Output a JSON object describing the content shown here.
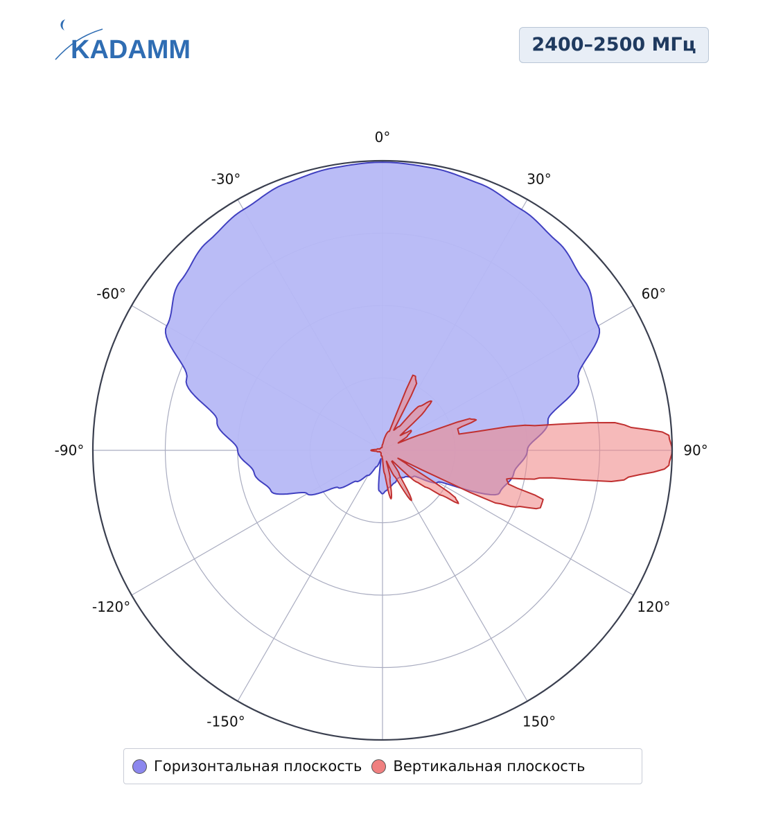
{
  "header": {
    "logo_text": "KADAMM",
    "frequency_band": "2400–2500 МГц"
  },
  "colors": {
    "horizontal_fill": "#b6b8f6",
    "horizontal_line": "#4040c0",
    "vertical_fill": "#f08888",
    "vertical_line": "#c03030",
    "logo_blue": "#2f6db3"
  },
  "chart_data": {
    "type": "polar-area",
    "angular_unit": "degrees",
    "angular_range": [
      -180,
      180
    ],
    "zero_direction": "top",
    "angular_ticks": [
      0,
      30,
      60,
      90,
      120,
      150,
      180,
      -150,
      -120,
      -90,
      -60,
      -30
    ],
    "angular_tick_labels": [
      "0°",
      "30°",
      "60°",
      "90°",
      "120°",
      "150°",
      "",
      "-150°",
      "-120°",
      "-90°",
      "-60°",
      "-30°"
    ],
    "radial_range": [
      0,
      1
    ],
    "radial_grid": [
      0.25,
      0.5,
      0.75,
      1.0
    ],
    "radial_tick_labels_shown": false,
    "grid": true,
    "legend_position": "bottom",
    "series": [
      {
        "name": "Горизонтальная плоскость",
        "theta": [
          0,
          10,
          20,
          30,
          40,
          50,
          60,
          70,
          80,
          90,
          100,
          110,
          120,
          130,
          140,
          150,
          160,
          170,
          175,
          180,
          -175,
          -170,
          -160,
          -150,
          -140,
          -130,
          -120,
          -110,
          -100,
          -90,
          -80,
          -70,
          -60,
          -50,
          -40,
          -30,
          -20,
          -10
        ],
        "r": [
          0.995,
          0.99,
          0.98,
          0.96,
          0.94,
          0.91,
          0.86,
          0.72,
          0.58,
          0.5,
          0.46,
          0.43,
          0.22,
          0.14,
          0.12,
          0.11,
          0.12,
          0.13,
          0.14,
          0.15,
          0.14,
          0.03,
          0.06,
          0.1,
          0.14,
          0.2,
          0.3,
          0.41,
          0.45,
          0.5,
          0.58,
          0.72,
          0.86,
          0.91,
          0.94,
          0.96,
          0.98,
          0.99
        ]
      },
      {
        "name": "Вертикальная плоскость",
        "theta": [
          0,
          20,
          22,
          24,
          25,
          27,
          29,
          35,
          40,
          45,
          47,
          50,
          53,
          55,
          56,
          60,
          65,
          68,
          70,
          72,
          74,
          78,
          80,
          84,
          87,
          90,
          93,
          97,
          100,
          103,
          105,
          107,
          110,
          113,
          115,
          117,
          120,
          123,
          125,
          127,
          130,
          133,
          137,
          140,
          145,
          150,
          155,
          160,
          165,
          170,
          175,
          180,
          -175,
          -170,
          -150,
          -120,
          -100,
          -90,
          -80,
          -60,
          -30,
          -10
        ],
        "r": [
          0.02,
          0.07,
          0.28,
          0.28,
          0.27,
          0.26,
          0.08,
          0.1,
          0.2,
          0.24,
          0.2,
          0.08,
          0.1,
          0.12,
          0.12,
          0.1,
          0.06,
          0.15,
          0.32,
          0.34,
          0.27,
          0.27,
          0.5,
          0.84,
          0.99,
          1.0,
          0.99,
          0.84,
          0.55,
          0.44,
          0.45,
          0.58,
          0.58,
          0.5,
          0.43,
          0.06,
          0.1,
          0.3,
          0.32,
          0.26,
          0.2,
          0.16,
          0.05,
          0.05,
          0.1,
          0.2,
          0.1,
          0.04,
          0.1,
          0.17,
          0.08,
          0.03,
          0.02,
          0.02,
          0.01,
          0.01,
          0.02,
          0.04,
          0.02,
          0.01,
          0.01,
          0.01
        ]
      }
    ]
  }
}
